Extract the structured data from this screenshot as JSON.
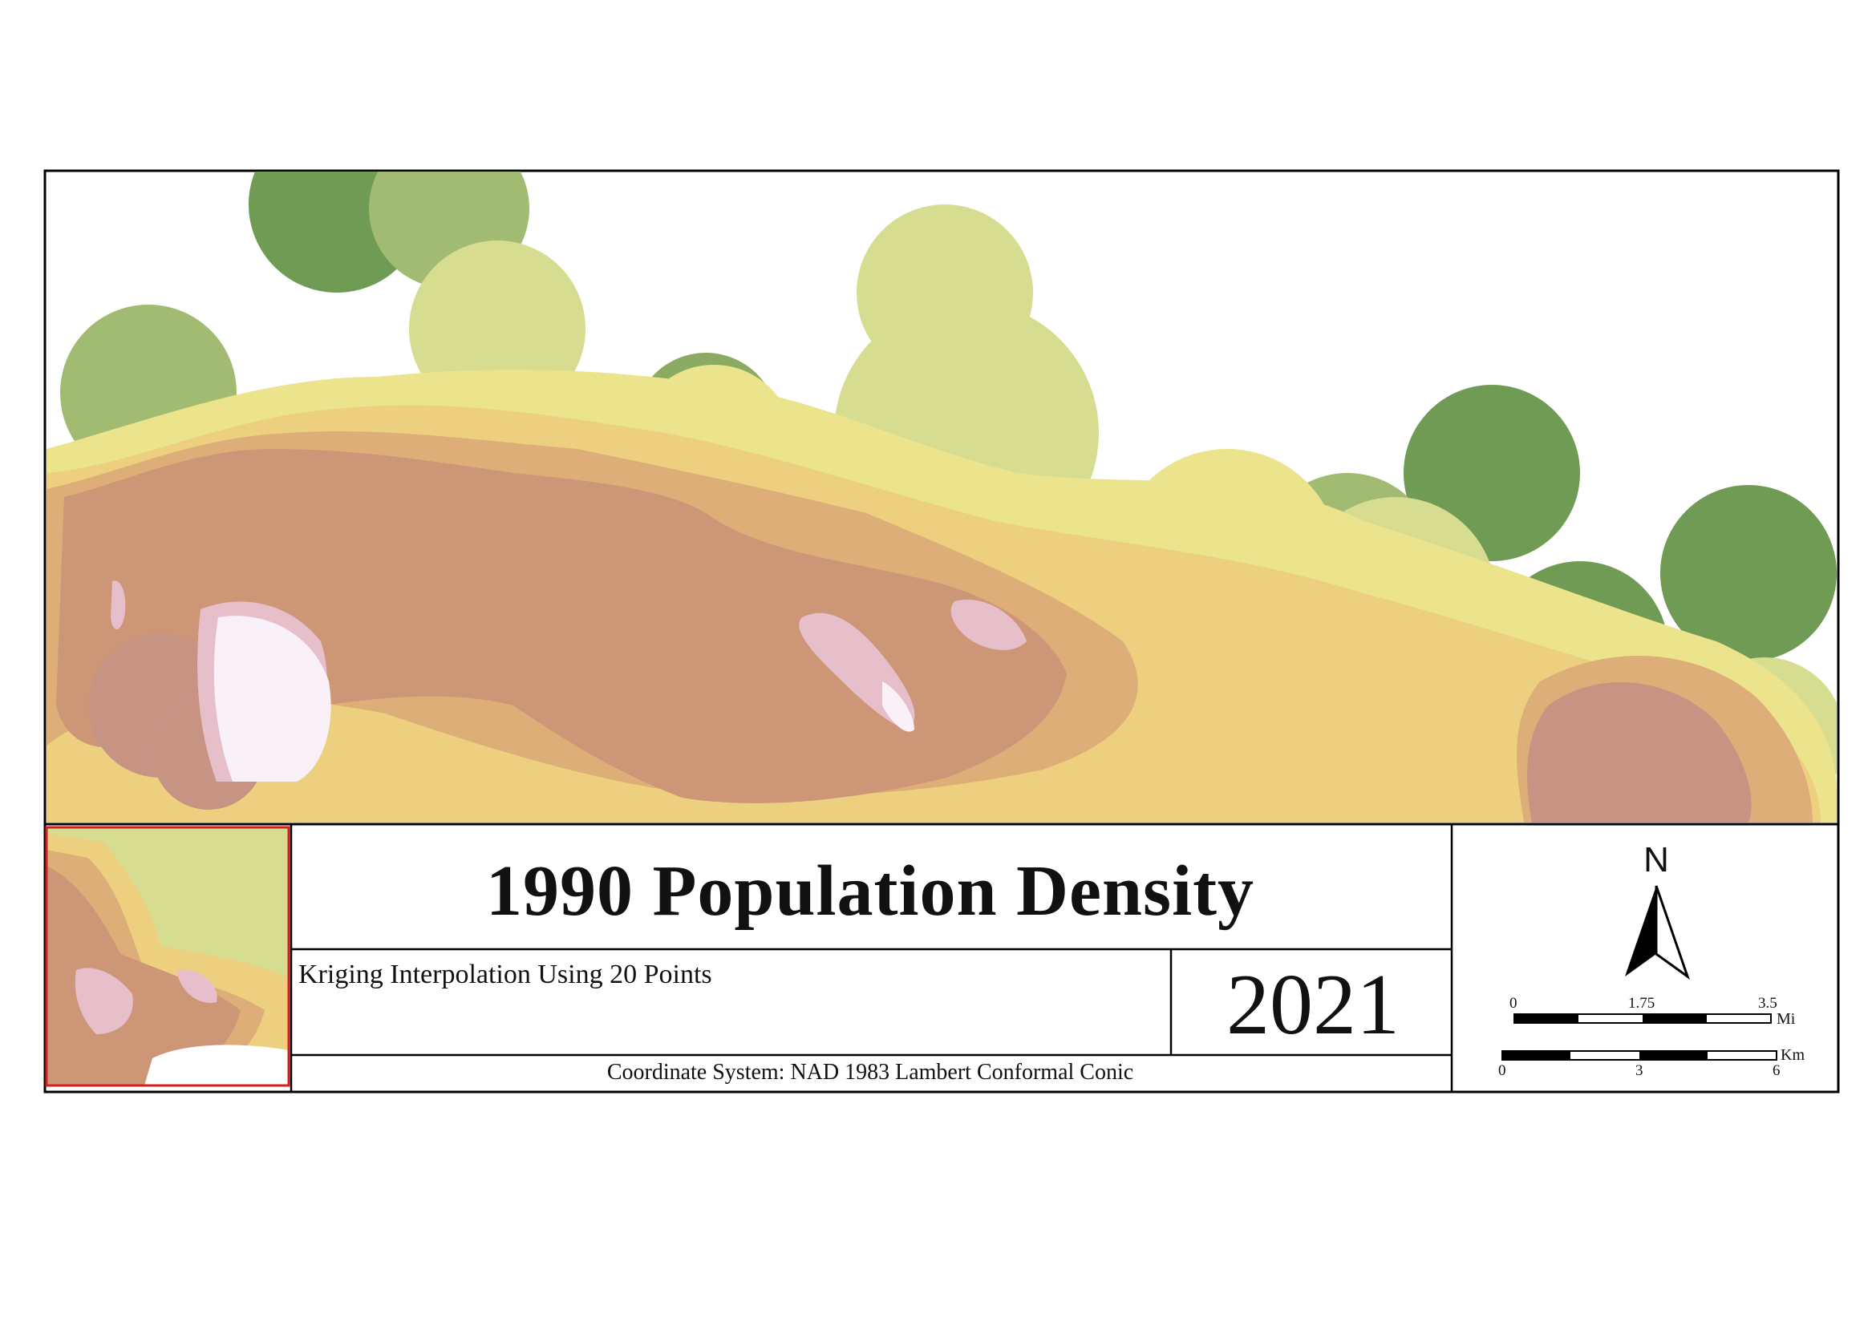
{
  "map": {
    "title": "1990 Population Density",
    "subtitle": "Kriging Interpolation Using 20 Points",
    "year": "2021",
    "coordinate_system": "Coordinate System: NAD 1983 Lambert Conformal Conic"
  },
  "north_arrow": {
    "label": "N"
  },
  "scale_bar": {
    "miles": {
      "ticks": [
        "0",
        "1.75",
        "3.5"
      ],
      "unit": "Mi"
    },
    "km": {
      "ticks": [
        "0",
        "3",
        "6"
      ],
      "unit": "Km"
    }
  },
  "legend_colors": {
    "dark_green": "#709a55",
    "green": "#a1bb73",
    "light_green": "#d7dd90",
    "pale_yellow": "#ece38d",
    "yellow": "#ecd07f",
    "orange": "#ddae78",
    "tan": "#cc9677",
    "mauve": "#c79383",
    "pink": "#e6bfcb",
    "pale_pink": "#faf0f8",
    "inset_border": "#d22020",
    "frame": "#000000"
  }
}
